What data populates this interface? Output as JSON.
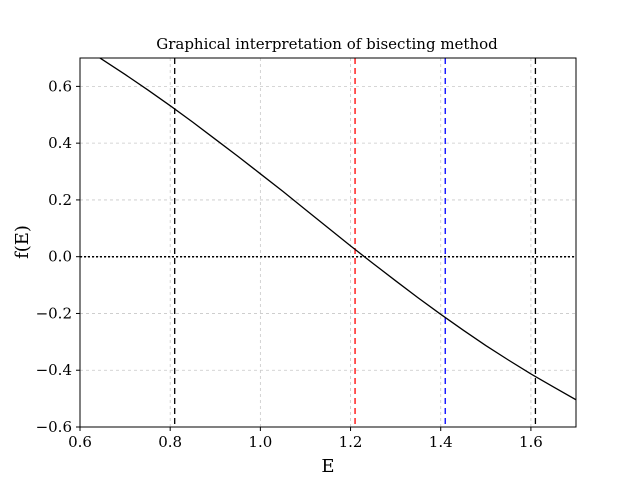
{
  "chart_data": {
    "type": "line",
    "title": "Graphical interpretation of bisecting method",
    "xlabel": "E",
    "ylabel": "f(E)",
    "xlim": [
      0.6,
      1.7
    ],
    "ylim": [
      -0.6,
      0.7
    ],
    "xticks": [
      0.6,
      0.8,
      1.0,
      1.2,
      1.4,
      1.6
    ],
    "xtick_labels": [
      "0.6",
      "0.8",
      "1.0",
      "1.2",
      "1.4",
      "1.6"
    ],
    "yticks": [
      -0.6,
      -0.4,
      -0.2,
      0.0,
      0.2,
      0.4,
      0.6
    ],
    "ytick_labels": [
      "−0.6",
      "−0.4",
      "−0.2",
      "0.0",
      "0.2",
      "0.4",
      "0.6"
    ],
    "grid": true,
    "series": [
      {
        "x": [
          0.6,
          0.65,
          0.7,
          0.75,
          0.8,
          0.85,
          0.9,
          0.95,
          1.0,
          1.05,
          1.1,
          1.15,
          1.2,
          1.25,
          1.3,
          1.35,
          1.4,
          1.45,
          1.5,
          1.55,
          1.6,
          1.65,
          1.7
        ],
        "y": [
          0.745,
          0.694,
          0.642,
          0.588,
          0.532,
          0.474,
          0.414,
          0.354,
          0.292,
          0.23,
          0.166,
          0.102,
          0.038,
          -0.024,
          -0.085,
          -0.145,
          -0.203,
          -0.259,
          -0.313,
          -0.364,
          -0.413,
          -0.459,
          -0.504
        ],
        "color": "#000000",
        "style": "solid"
      }
    ],
    "hlines": [
      {
        "y": 0.0,
        "color": "#000000",
        "style": "dotted"
      }
    ],
    "vlines": [
      {
        "x": 0.81,
        "color": "#000000",
        "style": "dashed"
      },
      {
        "x": 1.21,
        "color": "#ff0000",
        "style": "dashed"
      },
      {
        "x": 1.41,
        "color": "#0000ff",
        "style": "dashed"
      },
      {
        "x": 1.61,
        "color": "#000000",
        "style": "dashed"
      }
    ],
    "colors": {
      "grid": "#c8c8c8",
      "axes": "#000000",
      "background": "#ffffff"
    }
  }
}
